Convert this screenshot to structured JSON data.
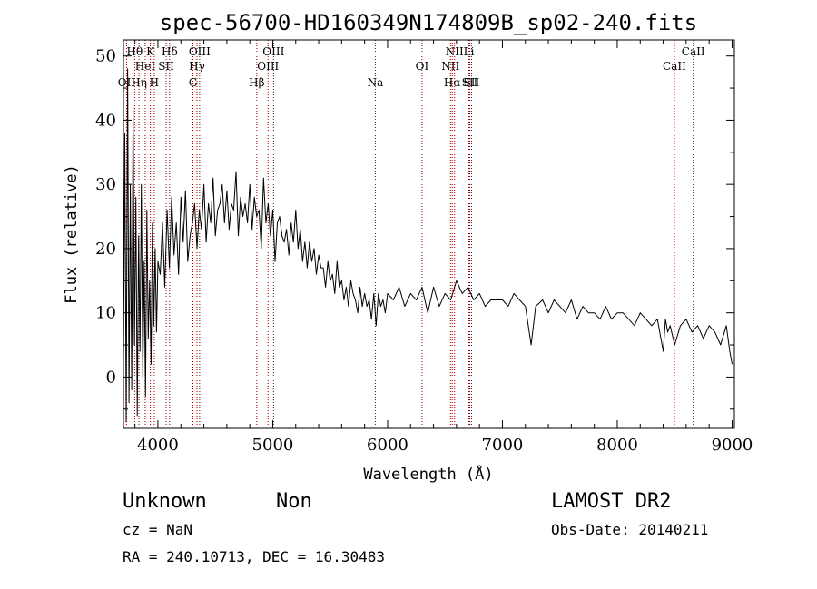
{
  "chart_data": {
    "type": "line",
    "title": "spec-56700-HD160349N174809B_sp02-240.fits",
    "xlabel": "Wavelength (Å)",
    "ylabel": "Flux (relative)",
    "xlim": [
      3700,
      9020
    ],
    "ylim": [
      -8,
      52.5
    ],
    "xticks": [
      4000,
      5000,
      6000,
      7000,
      8000,
      9000
    ],
    "yticks": [
      0,
      10,
      20,
      30,
      40,
      50
    ],
    "grid": false,
    "spectrum_color": "#000000",
    "line_marker_color": "#8b0000",
    "series": [
      {
        "x": [
          3700,
          3712,
          3724,
          3736,
          3748,
          3760,
          3772,
          3784,
          3796,
          3808,
          3820,
          3832,
          3844,
          3856,
          3868,
          3880,
          3892,
          3904,
          3916,
          3928,
          3940,
          3952,
          3964,
          3976,
          3988,
          4000,
          4020,
          4040,
          4060,
          4080,
          4100,
          4120,
          4140,
          4160,
          4180,
          4200,
          4220,
          4240,
          4260,
          4280,
          4300,
          4320,
          4340,
          4360,
          4380,
          4400,
          4420,
          4440,
          4460,
          4480,
          4500,
          4520,
          4540,
          4560,
          4580,
          4600,
          4620,
          4640,
          4660,
          4680,
          4700,
          4720,
          4740,
          4760,
          4780,
          4800,
          4820,
          4840,
          4860,
          4880,
          4900,
          4920,
          4940,
          4960,
          4980,
          5000,
          5020,
          5040,
          5060,
          5080,
          5100,
          5120,
          5140,
          5160,
          5180,
          5200,
          5220,
          5240,
          5260,
          5280,
          5300,
          5320,
          5340,
          5360,
          5380,
          5400,
          5420,
          5440,
          5460,
          5480,
          5500,
          5520,
          5540,
          5560,
          5580,
          5600,
          5620,
          5640,
          5660,
          5680,
          5700,
          5720,
          5740,
          5760,
          5780,
          5800,
          5820,
          5840,
          5860,
          5880,
          5900,
          5920,
          5940,
          5960,
          5980,
          6000,
          6050,
          6100,
          6150,
          6200,
          6250,
          6300,
          6350,
          6400,
          6450,
          6500,
          6550,
          6600,
          6650,
          6700,
          6750,
          6800,
          6850,
          6900,
          6950,
          7000,
          7050,
          7100,
          7150,
          7200,
          7250,
          7270,
          7290,
          7350,
          7400,
          7450,
          7500,
          7550,
          7600,
          7650,
          7700,
          7750,
          7800,
          7850,
          7900,
          7950,
          8000,
          8050,
          8100,
          8150,
          8200,
          8250,
          8300,
          8350,
          8400,
          8420,
          8440,
          8460,
          8500,
          8550,
          8600,
          8650,
          8700,
          8750,
          8800,
          8850,
          8900,
          8950,
          8980,
          9000
        ],
        "y": [
          2,
          38,
          -7,
          48,
          -4,
          30,
          -2,
          42,
          5,
          28,
          -6,
          22,
          4,
          30,
          0,
          18,
          -3,
          26,
          6,
          15,
          2,
          24,
          8,
          20,
          7,
          18,
          16,
          24,
          14,
          26,
          17,
          28,
          19,
          24,
          16,
          28,
          21,
          29,
          18,
          22,
          24,
          27,
          20,
          26,
          23,
          30,
          21,
          27,
          24,
          31,
          22,
          26,
          27,
          30,
          24,
          29,
          23,
          27,
          26,
          32,
          22,
          28,
          25,
          27,
          24,
          30,
          23,
          28,
          25,
          26,
          20,
          31,
          24,
          27,
          22,
          26,
          18,
          24,
          25,
          22,
          21,
          23,
          19,
          24,
          21,
          26,
          20,
          23,
          18,
          21,
          17,
          21,
          18,
          20,
          16,
          19,
          17,
          17,
          14,
          18,
          15,
          16,
          13,
          18,
          14,
          15,
          12,
          14,
          11,
          15,
          13,
          12,
          10,
          14,
          11,
          13,
          11,
          12,
          9,
          13,
          8,
          13,
          11,
          12,
          10,
          13,
          12,
          14,
          11,
          13,
          12,
          14,
          10,
          14,
          11,
          13,
          12,
          15,
          13,
          14,
          12,
          13,
          11,
          12,
          12,
          12,
          11,
          13,
          12,
          11,
          5,
          8,
          11,
          12,
          10,
          12,
          11,
          10,
          12,
          9,
          11,
          10,
          10,
          9,
          11,
          9,
          10,
          10,
          9,
          8,
          10,
          9,
          8,
          9,
          4,
          9,
          7,
          8,
          5,
          8,
          9,
          7,
          8,
          6,
          8,
          7,
          5,
          8,
          4,
          2
        ]
      }
    ],
    "line_markers": [
      {
        "label": "OII",
        "wavelength": 3727,
        "row": 2
      },
      {
        "label": "Hθ",
        "wavelength": 3798,
        "row": 0
      },
      {
        "label": "Hη",
        "wavelength": 3835,
        "row": 2
      },
      {
        "label": "HeI",
        "wavelength": 3889,
        "row": 1
      },
      {
        "label": "K",
        "wavelength": 3934,
        "row": 0
      },
      {
        "label": "H",
        "wavelength": 3968,
        "row": 2
      },
      {
        "label": "SII",
        "wavelength": 4072,
        "row": 1
      },
      {
        "label": "Hδ",
        "wavelength": 4102,
        "row": 0
      },
      {
        "label": "G",
        "wavelength": 4305,
        "row": 2
      },
      {
        "label": "Hγ",
        "wavelength": 4340,
        "row": 1
      },
      {
        "label": "OIII",
        "wavelength": 4363,
        "row": 0
      },
      {
        "label": "Hβ",
        "wavelength": 4861,
        "row": 2
      },
      {
        "label": "OIII",
        "wavelength": 4959,
        "row": 1
      },
      {
        "label": "OIII",
        "wavelength": 5007,
        "row": 0
      },
      {
        "label": "Na",
        "wavelength": 5893,
        "row": 2
      },
      {
        "label": "OI",
        "wavelength": 6300,
        "row": 1
      },
      {
        "label": "NII",
        "wavelength": 6548,
        "row": 1
      },
      {
        "label": "Hα",
        "wavelength": 6563,
        "row": 2
      },
      {
        "label": "NII",
        "wavelength": 6583,
        "row": 0
      },
      {
        "label": "Li",
        "wavelength": 6708,
        "row": 0
      },
      {
        "label": "SII",
        "wavelength": 6716,
        "row": 2
      },
      {
        "label": "SII",
        "wavelength": 6731,
        "row": 2
      },
      {
        "label": "CaII",
        "wavelength": 8498,
        "row": 1
      },
      {
        "label": "CaII",
        "wavelength": 8662,
        "row": 0
      }
    ]
  },
  "info": {
    "object_class": "Unknown",
    "subclass": "Non",
    "cz": "cz = NaN",
    "coords": "RA = 240.10713, DEC =  16.30483",
    "survey": "LAMOST DR2",
    "obs_date": "Obs-Date: 20140211"
  }
}
